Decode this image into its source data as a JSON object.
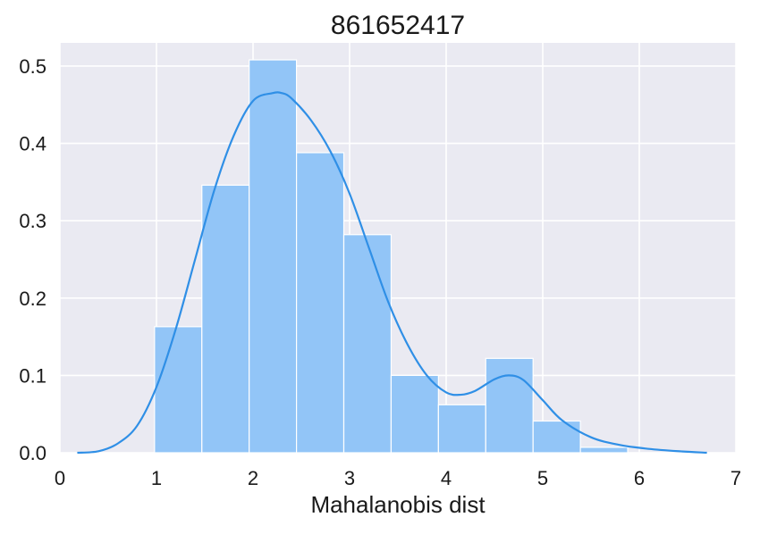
{
  "chart_data": {
    "type": "bar",
    "title": "861652417",
    "xlabel": "Mahalanobis dist",
    "ylabel": "",
    "xlim": [
      0,
      7
    ],
    "ylim": [
      0,
      0.53
    ],
    "x_ticks": [
      0,
      1,
      2,
      3,
      4,
      5,
      6,
      7
    ],
    "y_ticks": [
      0.0,
      0.1,
      0.2,
      0.3,
      0.4,
      0.5
    ],
    "x_tick_labels": [
      "0",
      "1",
      "2",
      "3",
      "4",
      "5",
      "6",
      "7"
    ],
    "y_tick_labels": [
      "0.0",
      "0.1",
      "0.2",
      "0.3",
      "0.4",
      "0.5"
    ],
    "grid": true,
    "background": "#eaeaf2",
    "grid_color": "#ffffff",
    "histogram": {
      "bin_edges": [
        0.98,
        1.47,
        1.96,
        2.45,
        2.94,
        3.43,
        3.92,
        4.41,
        4.9,
        5.39,
        5.88
      ],
      "values": [
        0.163,
        0.346,
        0.508,
        0.388,
        0.282,
        0.1,
        0.062,
        0.122,
        0.041,
        0.007
      ],
      "color": "#92c5f7"
    },
    "kde": {
      "color": "#2f8fe6",
      "x": [
        0.18,
        0.4,
        0.6,
        0.8,
        1.0,
        1.2,
        1.4,
        1.6,
        1.8,
        2.0,
        2.2,
        2.3,
        2.4,
        2.6,
        2.8,
        3.0,
        3.2,
        3.4,
        3.6,
        3.8,
        4.0,
        4.15,
        4.3,
        4.5,
        4.65,
        4.8,
        5.0,
        5.2,
        5.5,
        5.8,
        6.1,
        6.4,
        6.7
      ],
      "y": [
        0.0,
        0.002,
        0.012,
        0.035,
        0.085,
        0.16,
        0.25,
        0.34,
        0.41,
        0.455,
        0.465,
        0.465,
        0.458,
        0.43,
        0.39,
        0.335,
        0.265,
        0.195,
        0.14,
        0.1,
        0.078,
        0.075,
        0.08,
        0.095,
        0.1,
        0.094,
        0.068,
        0.042,
        0.02,
        0.01,
        0.005,
        0.002,
        0.0
      ]
    }
  }
}
